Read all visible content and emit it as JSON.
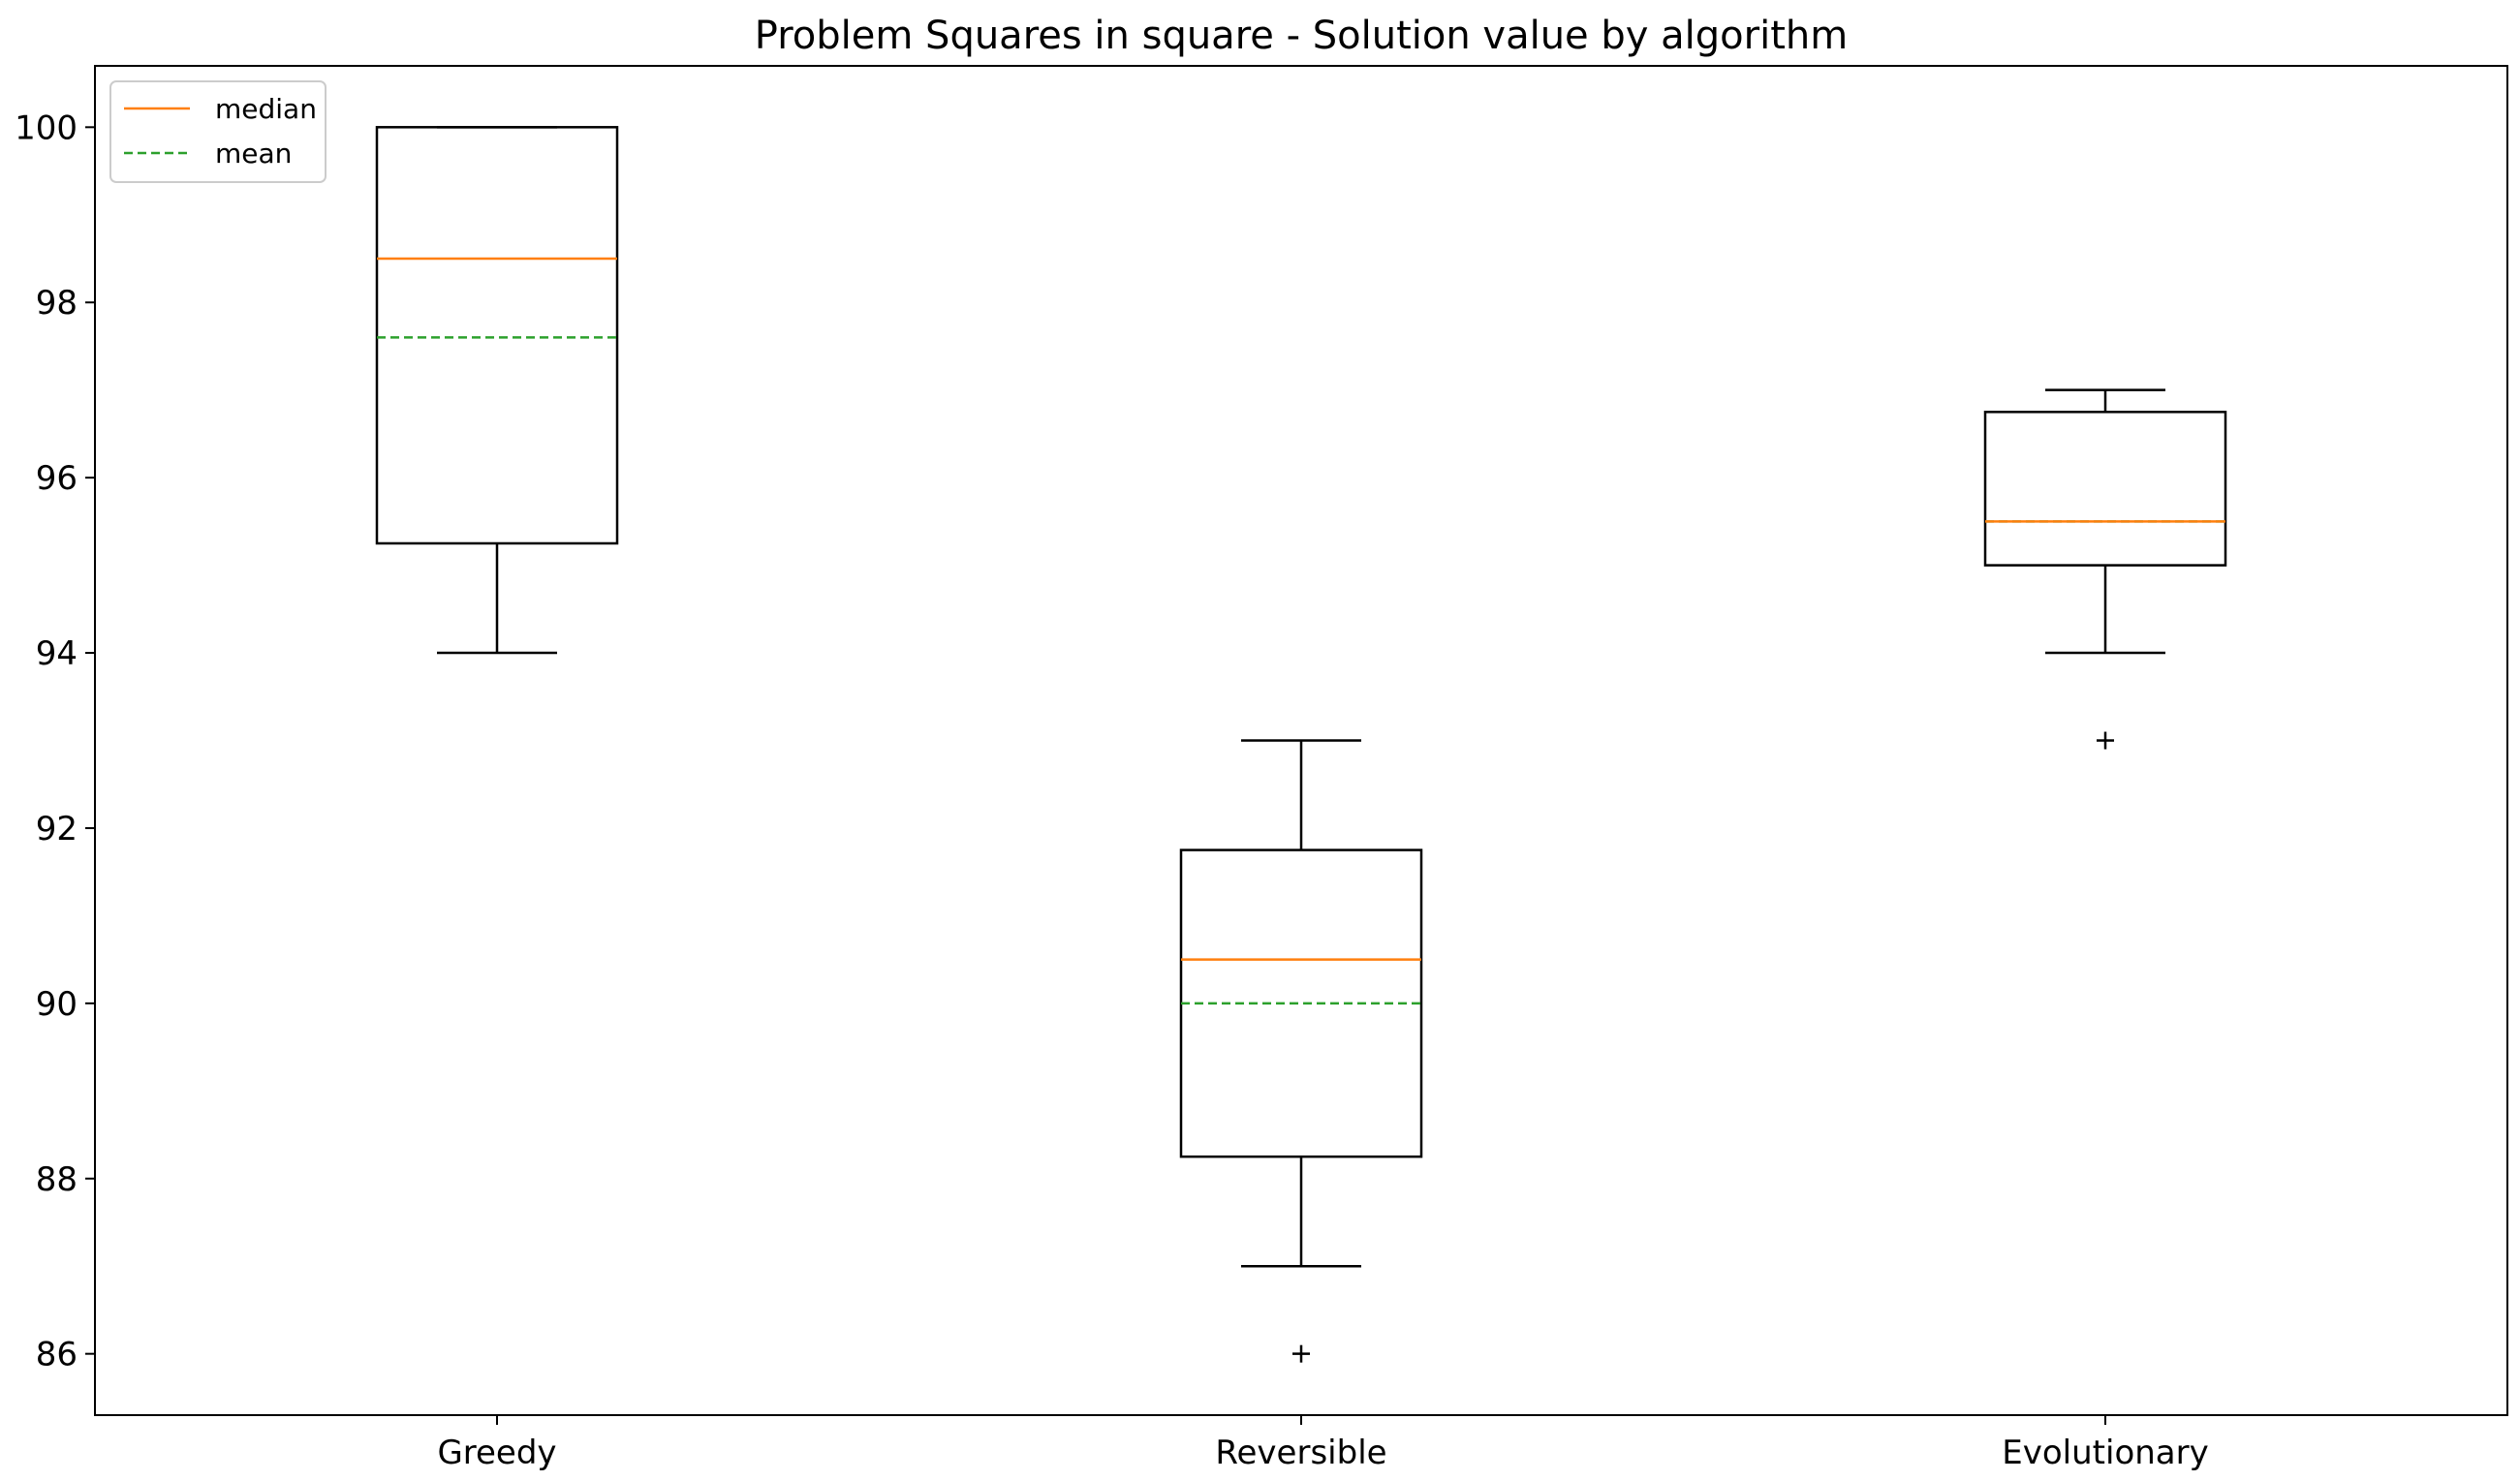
{
  "chart_data": {
    "type": "box",
    "title": "Problem Squares in square - Solution value by algorithm",
    "xlabel": "",
    "ylabel": "",
    "categories": [
      "Greedy",
      "Reversible",
      "Evolutionary"
    ],
    "ylim": [
      85.3,
      100.7
    ],
    "yticks": [
      86,
      88,
      90,
      92,
      94,
      96,
      98,
      100
    ],
    "grid": false,
    "legend": {
      "position": "top-left",
      "entries": [
        {
          "label": "median",
          "color": "#ff7f0e",
          "style": "solid"
        },
        {
          "label": "mean",
          "color": "#2ca02c",
          "style": "dashed"
        }
      ]
    },
    "boxes": [
      {
        "category": "Greedy",
        "whisker_low": 94,
        "q1": 95.25,
        "median": 98.5,
        "mean": 97.6,
        "q3": 100,
        "whisker_high": 100,
        "outliers": []
      },
      {
        "category": "Reversible",
        "whisker_low": 87,
        "q1": 88.25,
        "median": 90.5,
        "mean": 90,
        "q3": 91.75,
        "whisker_high": 93,
        "outliers": [
          86
        ]
      },
      {
        "category": "Evolutionary",
        "whisker_low": 94,
        "q1": 95,
        "median": 95.5,
        "mean": 95.5,
        "q3": 96.75,
        "whisker_high": 97,
        "outliers": [
          93
        ]
      }
    ],
    "colors": {
      "box": "#000000",
      "median": "#ff7f0e",
      "mean": "#2ca02c"
    }
  }
}
